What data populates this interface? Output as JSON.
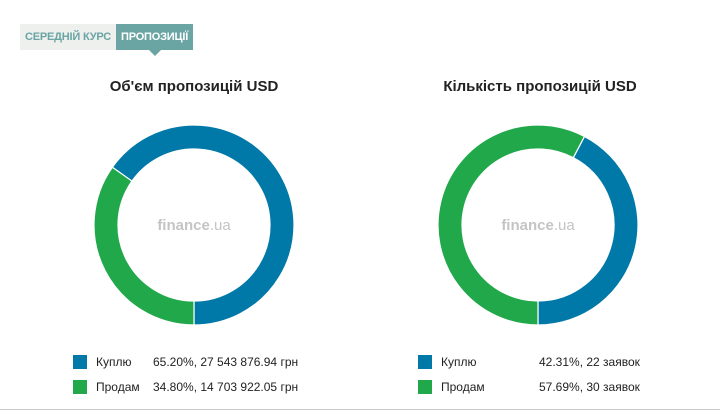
{
  "tabs": [
    {
      "label": "СЕРЕДНІЙ КУРС",
      "active": false
    },
    {
      "label": "ПРОПОЗИЦІЇ",
      "active": true
    }
  ],
  "watermark": {
    "brand": "finance",
    "suffix": ".ua"
  },
  "colors": {
    "buy": "#0078a8",
    "sell": "#20a84a",
    "tab_active": "#6aa5a4"
  },
  "chart_data": [
    {
      "type": "pie",
      "title": "Об'єм пропозицій USD",
      "categories": [
        "Куплю",
        "Продам"
      ],
      "values": [
        65.2,
        34.8
      ],
      "legend": [
        {
          "label": "Куплю",
          "value_text": "65.20%, 27 543 876.94 грн"
        },
        {
          "label": "Продам",
          "value_text": "34.80%, 14 703 922.05 грн"
        }
      ]
    },
    {
      "type": "pie",
      "title": "Кількість пропозицій USD",
      "categories": [
        "Куплю",
        "Продам"
      ],
      "values": [
        42.31,
        57.69
      ],
      "legend": [
        {
          "label": "Куплю",
          "value_text": "42.31%, 22 заявок"
        },
        {
          "label": "Продам",
          "value_text": "57.69%, 30 заявок"
        }
      ]
    }
  ]
}
